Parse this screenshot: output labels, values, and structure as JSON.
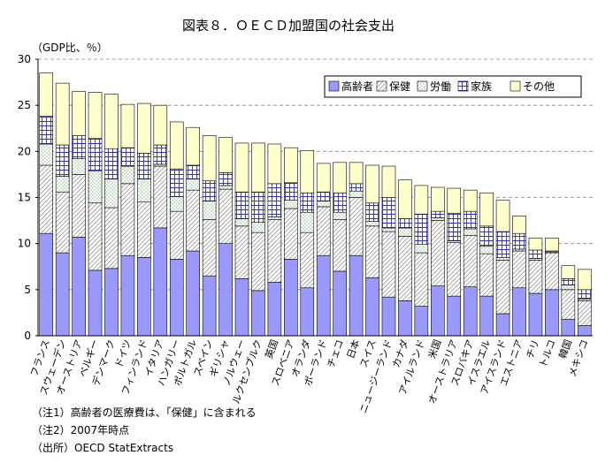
{
  "chart_data": {
    "type": "bar",
    "stacked": true,
    "title": "図表８．ＯＥＣＤ加盟国の社会支出",
    "unit_label": "（GDP比、％）",
    "ylim": [
      0,
      30
    ],
    "yticks": [
      0,
      5,
      10,
      15,
      20,
      25,
      30
    ],
    "grid": "dashed horizontal",
    "legend_position": "top-right",
    "categories": [
      "フランス",
      "スウェーデン",
      "オーストリア",
      "ベルギー",
      "デンマーク",
      "ドイツ",
      "フィンランド",
      "イタリア",
      "ハンガリー",
      "ポルトガル",
      "スペイン",
      "ギリシャ",
      "ノルウェー",
      "ルクセンブルク",
      "英国",
      "スロベニア",
      "オランダ",
      "ポーランド",
      "チェコ",
      "日本",
      "スイス",
      "ニュージーランド",
      "カナダ",
      "アイルランド",
      "米国",
      "オーストラリア",
      "スロバキア",
      "イスラエル",
      "アイスランド",
      "エストニア",
      "チリ",
      "トルコ",
      "韓国",
      "メキシコ"
    ],
    "series": [
      {
        "name": "高齢者",
        "color": "#9999ff",
        "values": [
          11.1,
          9.0,
          10.7,
          7.1,
          7.3,
          8.7,
          8.5,
          11.7,
          8.3,
          9.2,
          6.5,
          10.0,
          6.2,
          4.9,
          5.8,
          8.3,
          5.2,
          8.7,
          7.0,
          8.7,
          6.3,
          4.2,
          3.8,
          3.2,
          5.4,
          4.3,
          5.3,
          4.3,
          2.4,
          5.2,
          4.6,
          5.0,
          1.8,
          1.1
        ]
      },
      {
        "name": "保健",
        "color": "#ffffff",
        "values": [
          7.4,
          6.6,
          6.8,
          7.3,
          6.6,
          7.8,
          6.0,
          6.7,
          5.2,
          6.6,
          6.1,
          5.9,
          5.7,
          6.3,
          6.8,
          5.5,
          6.0,
          5.3,
          5.6,
          6.3,
          5.6,
          7.1,
          7.0,
          5.8,
          7.1,
          5.8,
          5.6,
          4.6,
          5.8,
          4.0,
          3.6,
          4.0,
          3.2,
          2.7
        ]
      },
      {
        "name": "労働",
        "color": "#ffffff",
        "values": [
          2.3,
          1.7,
          1.7,
          3.5,
          3.1,
          1.9,
          2.5,
          0.2,
          1.6,
          1.2,
          2.0,
          0.4,
          0.8,
          1.1,
          0.3,
          0.9,
          2.2,
          0.6,
          0.8,
          0.7,
          0.5,
          0.4,
          0.9,
          0.9,
          0.3,
          0.2,
          0.7,
          0.8,
          0.3,
          0.2,
          0.2,
          0.1,
          0.5,
          0.2
        ]
      },
      {
        "name": "家族",
        "color": "#ffffff",
        "values": [
          3.0,
          3.4,
          2.5,
          3.5,
          3.3,
          2.0,
          2.8,
          2.1,
          3.0,
          1.5,
          2.2,
          1.4,
          2.9,
          3.3,
          3.6,
          1.9,
          2.1,
          1.0,
          2.1,
          0.8,
          2.0,
          3.3,
          1.0,
          3.3,
          0.7,
          3.0,
          1.9,
          2.2,
          2.8,
          1.7,
          0.9,
          0.1,
          0.7,
          1.0
        ]
      },
      {
        "name": "その他",
        "color": "#ffffcc",
        "values": [
          4.7,
          6.7,
          4.8,
          5.0,
          5.9,
          4.7,
          5.4,
          4.3,
          5.1,
          4.1,
          4.9,
          3.8,
          5.3,
          5.3,
          4.3,
          3.8,
          4.6,
          3.1,
          3.3,
          2.3,
          4.1,
          3.4,
          4.2,
          3.1,
          2.6,
          2.7,
          2.3,
          3.6,
          3.4,
          1.9,
          1.3,
          1.4,
          1.4,
          2.2
        ]
      }
    ]
  },
  "notes": {
    "note1": "（注1）高齢者の医療費は、「保健」に含まれる",
    "note2": "（注2）2007年時点",
    "source": "（出所）OECD StatExtracts"
  }
}
